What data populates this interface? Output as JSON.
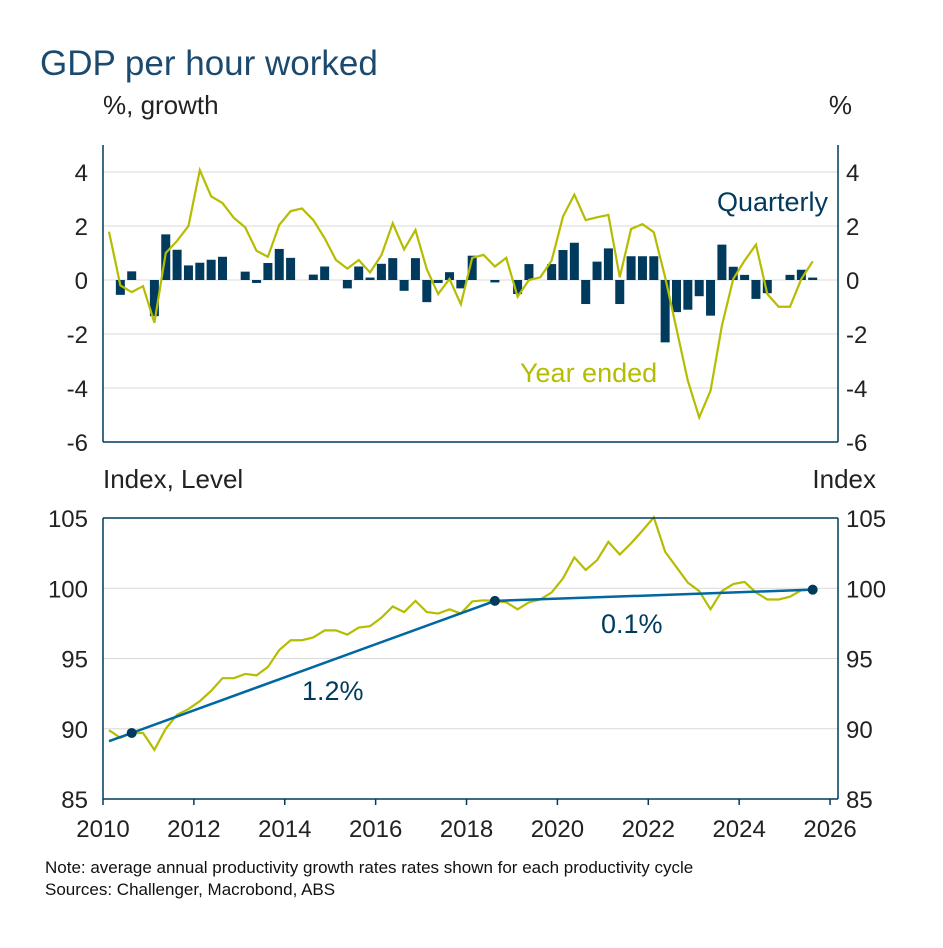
{
  "title": "GDP per hour worked",
  "note": "Note: average annual productivity growth rates rates shown for each productivity cycle",
  "sources": "Sources: Challenger, Macrobond, ABS",
  "colors": {
    "title": "#1c4a6e",
    "quarterly": "#003a5d",
    "year_ended": "#b5bd00",
    "trend": "#0067a0",
    "dots": "#003a5d",
    "grid": "#d9d9d9",
    "axis": "#003a5d"
  },
  "chart_data": [
    {
      "type": "bar+line",
      "left_unit": "%, growth",
      "right_unit": "%",
      "ylim": [
        -6,
        5
      ],
      "yticks": [
        4,
        2,
        0,
        -2,
        -4,
        -6
      ],
      "grid": true,
      "first_quarter": "2010-Q1",
      "series": [
        {
          "name": "Quarterly",
          "kind": "bar",
          "start": "2010-Q2",
          "values": [
            -0.55,
            0.32,
            0,
            -1.34,
            1.69,
            1.12,
            0.54,
            0.64,
            0.75,
            0.86,
            0,
            0.31,
            -0.11,
            0.63,
            1.15,
            0.82,
            0,
            0.2,
            0.5,
            0,
            -0.31,
            0.5,
            0.09,
            0.6,
            0.81,
            -0.4,
            0.81,
            -0.82,
            -0.11,
            0.29,
            -0.31,
            0.9,
            0,
            -0.09,
            0,
            -0.52,
            0.59,
            0,
            0.59,
            1.11,
            1.38,
            -0.89,
            0.68,
            1.17,
            -0.89,
            0.88,
            0.88,
            0.88,
            -2.31,
            -1.19,
            -1.1,
            -0.6,
            -1.32,
            1.31,
            0.49,
            0.19,
            -0.7,
            -0.49,
            0,
            0.19,
            0.38,
            0.09
          ]
        },
        {
          "name": "Year ended",
          "kind": "line",
          "start": "2010-Q1",
          "values": [
            1.79,
            -0.2,
            -0.45,
            -0.23,
            -1.58,
            1.0,
            1.45,
            2.0,
            4.07,
            3.1,
            2.85,
            2.3,
            1.95,
            1.08,
            0.86,
            2.04,
            2.55,
            2.65,
            2.22,
            1.55,
            0.74,
            0.42,
            0.74,
            0.28,
            0.92,
            2.1,
            1.13,
            1.85,
            0.4,
            -0.52,
            0.04,
            -0.9,
            0.82,
            0.93,
            0.5,
            0.82,
            -0.62,
            0.0,
            0.1,
            0.72,
            2.35,
            3.16,
            2.22,
            2.32,
            2.41,
            0.1,
            1.89,
            2.07,
            1.77,
            0.1,
            -1.81,
            -3.73,
            -5.09,
            -4.1,
            -1.69,
            0.04,
            0.72,
            1.31,
            -0.52,
            -0.99,
            -0.99,
            0.04,
            0.69
          ]
        }
      ]
    },
    {
      "type": "line",
      "left_unit": "Index, Level",
      "right_unit": "Index",
      "ylim": [
        85,
        105
      ],
      "yticks": [
        105,
        100,
        95,
        90,
        85
      ],
      "grid": true,
      "xlim": [
        2010,
        2026
      ],
      "xticks": [
        "2010",
        "2012",
        "2014",
        "2016",
        "2018",
        "2020",
        "2022",
        "2024",
        "2026"
      ],
      "series": [
        {
          "kind": "line",
          "start": "2010-Q1",
          "values": [
            89.9,
            89.36,
            89.7,
            89.7,
            88.5,
            90.0,
            91.0,
            91.4,
            91.96,
            92.7,
            93.6,
            93.6,
            93.9,
            93.8,
            94.4,
            95.6,
            96.3,
            96.3,
            96.5,
            97.0,
            97.0,
            96.7,
            97.2,
            97.3,
            97.9,
            98.7,
            98.3,
            99.1,
            98.3,
            98.2,
            98.5,
            98.2,
            99.06,
            99.14,
            99.1,
            99.0,
            98.5,
            99.0,
            99.2,
            99.7,
            100.7,
            102.2,
            101.3,
            102.0,
            103.3,
            102.4,
            103.2,
            104.1,
            105.05,
            102.6,
            101.5,
            100.4,
            99.8,
            98.5,
            99.8,
            100.3,
            100.45,
            99.7,
            99.2,
            99.2,
            99.4,
            99.86,
            99.9
          ]
        }
      ],
      "cycles": [
        {
          "start": "2010-Q3",
          "start_value": 89.7,
          "end": "2018-Q3",
          "end_value": 99.1,
          "label": "1.2%"
        },
        {
          "start": "2018-Q3",
          "start_value": 99.1,
          "end": "2025-Q3",
          "end_value": 99.9,
          "label": "0.1%"
        }
      ]
    }
  ]
}
